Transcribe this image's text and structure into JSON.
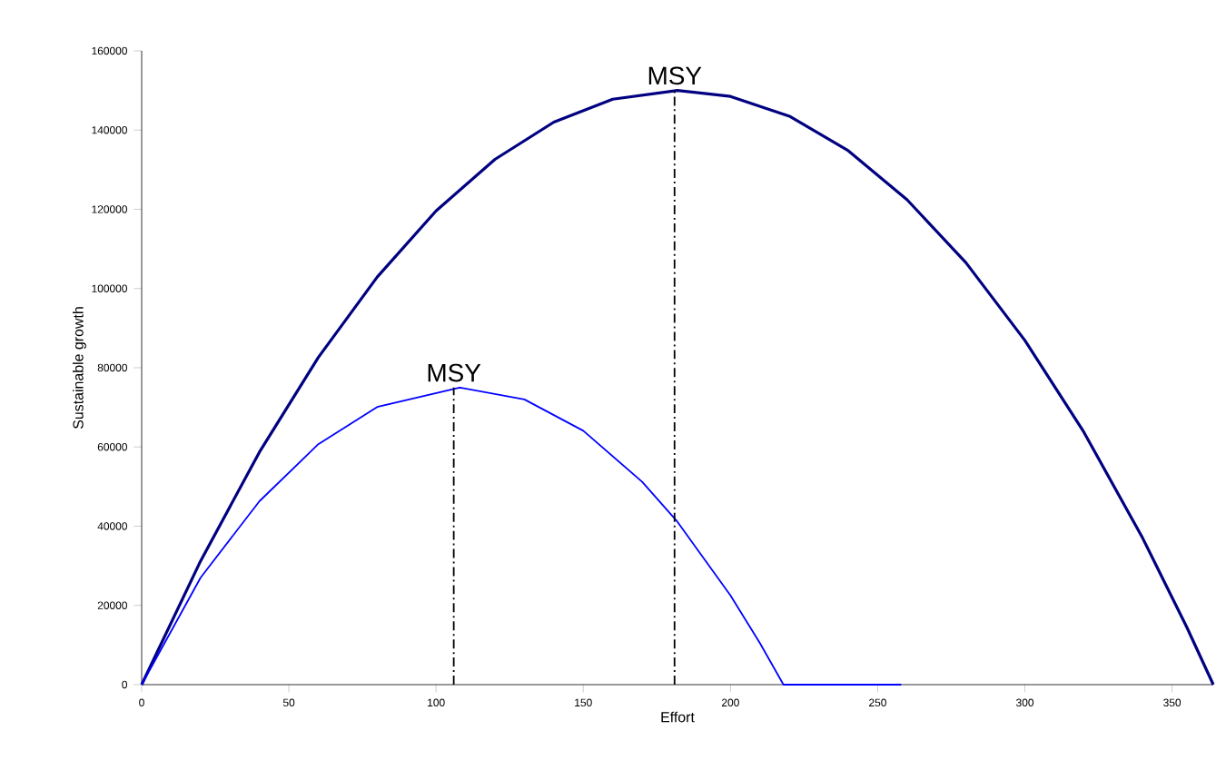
{
  "chart_data": {
    "type": "line",
    "xlabel": "Effort",
    "ylabel": "Sustainable growth",
    "xlim": [
      0,
      364
    ],
    "ylim": [
      0,
      160000
    ],
    "xticks": [
      0,
      50,
      100,
      150,
      200,
      250,
      300,
      350
    ],
    "yticks": [
      0,
      20000,
      40000,
      60000,
      80000,
      100000,
      120000,
      140000,
      160000
    ],
    "grid": false,
    "marker": "none",
    "line_style": "solid",
    "series": [
      {
        "color": "#000080",
        "x": [
          0,
          20,
          40,
          60,
          80,
          100,
          120,
          140,
          160,
          182,
          200,
          220,
          240,
          260,
          280,
          300,
          320,
          340,
          355,
          364
        ],
        "values": [
          0,
          31200,
          58700,
          82600,
          102900,
          119600,
          132600,
          142000,
          147800,
          150000,
          148500,
          143500,
          134800,
          122400,
          106500,
          86900,
          63800,
          37000,
          14500,
          0
        ]
      },
      {
        "color": "#0000ff",
        "x": [
          0,
          20,
          40,
          60,
          80,
          108,
          130,
          150,
          170,
          182,
          200,
          210,
          218,
          258
        ],
        "values": [
          0,
          27000,
          46300,
          60700,
          70100,
          75000,
          72000,
          64100,
          51200,
          41100,
          22500,
          10500,
          0,
          0
        ]
      },
      {
        "color": "#000000",
        "line_style": "dashed",
        "x": [
          106,
          106
        ],
        "values": [
          0,
          75000
        ]
      },
      {
        "color": "#000000",
        "line_style": "dashed",
        "x": [
          181,
          181
        ],
        "values": [
          0,
          150000
        ]
      }
    ],
    "annotations": [
      {
        "text": "MSY",
        "x": 106,
        "y": 75000
      },
      {
        "text": "MSY",
        "x": 181,
        "y": 150000
      }
    ]
  }
}
